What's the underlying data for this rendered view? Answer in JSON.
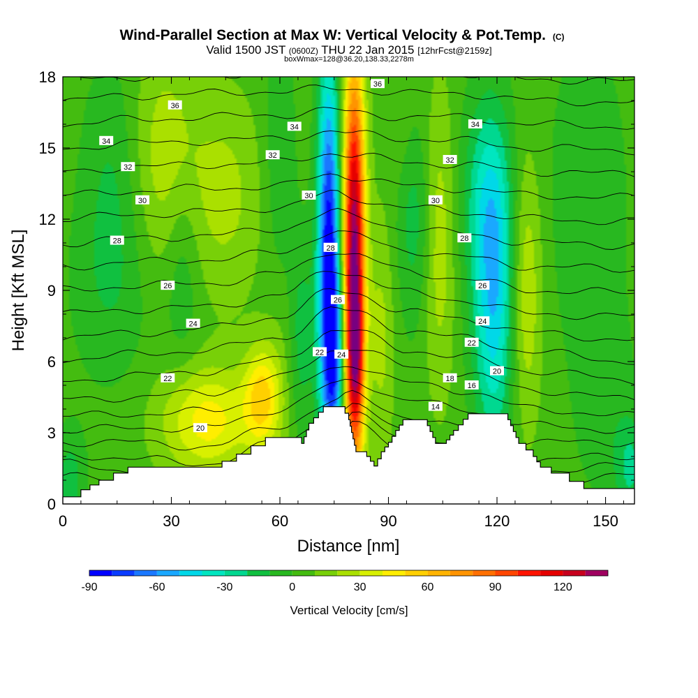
{
  "chart_data": {
    "type": "heatmap",
    "title": "Wind-Parallel Section at Max W: Vertical Velocity & Pot.Temp.",
    "title_mark": "(C)",
    "subtitle_parts": [
      "Valid 1500 JST",
      "(0600Z)",
      "THU 22 Jan 2015",
      "[12hrFcst@2159z]"
    ],
    "subtitle2": "boxWmax=128@36.20,138.33,2278m",
    "xlabel": "Distance [nm]",
    "ylabel": "Height [Kft MSL]",
    "xlim": [
      0,
      158
    ],
    "ylim": [
      0,
      18
    ],
    "x_ticks": [
      "0",
      "30",
      "60",
      "90",
      "120",
      "150"
    ],
    "y_ticks": [
      "0",
      "3",
      "6",
      "9",
      "12",
      "15",
      "18"
    ],
    "x_tick_values": [
      0,
      30,
      60,
      90,
      120,
      150
    ],
    "y_tick_values": [
      0,
      3,
      6,
      9,
      12,
      15,
      18
    ],
    "colorbar": {
      "label": "Vertical Velocity [cm/s]",
      "min": -90,
      "max": 140,
      "step": 10,
      "tick_labels": [
        "-90",
        "-60",
        "-30",
        "0",
        "30",
        "60",
        "90",
        "120"
      ],
      "tick_values": [
        -90,
        -60,
        -30,
        0,
        30,
        60,
        90,
        120
      ],
      "colors": [
        "#0000ff",
        "#0a3cff",
        "#1a78ff",
        "#1aa8ff",
        "#00d8e8",
        "#00e6c0",
        "#00d890",
        "#10c040",
        "#28b820",
        "#44bc10",
        "#78d008",
        "#aae000",
        "#d8f000",
        "#ffee00",
        "#ffd000",
        "#ffb400",
        "#ff9400",
        "#ff7000",
        "#ff4600",
        "#ff1400",
        "#e60000",
        "#c8001e",
        "#a00060",
        "#780080"
      ]
    },
    "terrain": [
      [
        0,
        0.3
      ],
      [
        5,
        0.6
      ],
      [
        10,
        1.0
      ],
      [
        14,
        1.3
      ],
      [
        18,
        1.55
      ],
      [
        40,
        1.55
      ],
      [
        44,
        1.8
      ],
      [
        48,
        2.1
      ],
      [
        52,
        2.45
      ],
      [
        56,
        2.8
      ],
      [
        64,
        2.8
      ],
      [
        66,
        2.55
      ],
      [
        68,
        3.4
      ],
      [
        72,
        4.1
      ],
      [
        77,
        4.1
      ],
      [
        79,
        3.55
      ],
      [
        81,
        2.2
      ],
      [
        84,
        2.0
      ],
      [
        86,
        1.6
      ],
      [
        88,
        2.2
      ],
      [
        90,
        2.6
      ],
      [
        92,
        3.1
      ],
      [
        94,
        3.55
      ],
      [
        100,
        3.55
      ],
      [
        103,
        2.55
      ],
      [
        106,
        2.7
      ],
      [
        108,
        3.1
      ],
      [
        112,
        3.8
      ],
      [
        120,
        3.8
      ],
      [
        123,
        3.55
      ],
      [
        126,
        2.55
      ],
      [
        130,
        2.0
      ],
      [
        132,
        1.55
      ],
      [
        135,
        1.3
      ],
      [
        140,
        0.95
      ],
      [
        144,
        0.65
      ],
      [
        158,
        0.65
      ]
    ],
    "theta_line_base": [
      [
        [
          0,
          1.2
        ],
        [
          20,
          0.8
        ],
        [
          40,
          0.5
        ],
        [
          60,
          1.2
        ],
        [
          75,
          2.6
        ],
        [
          80,
          3.6
        ],
        [
          95,
          2.2
        ],
        [
          110,
          1.0
        ],
        [
          130,
          1.0
        ],
        [
          158,
          1.2
        ]
      ],
      [
        [
          0,
          1.7
        ],
        [
          20,
          1.4
        ],
        [
          40,
          1.0
        ],
        [
          60,
          1.9
        ],
        [
          75,
          3.2
        ],
        [
          80,
          3.9
        ],
        [
          95,
          2.6
        ],
        [
          110,
          1.7
        ],
        [
          130,
          1.4
        ],
        [
          158,
          1.6
        ]
      ],
      [
        [
          0,
          2.1
        ],
        [
          20,
          1.9
        ],
        [
          40,
          1.7
        ],
        [
          60,
          2.6
        ],
        [
          75,
          3.7
        ],
        [
          80,
          4.1
        ],
        [
          95,
          3.1
        ],
        [
          110,
          2.4
        ],
        [
          130,
          1.9
        ],
        [
          158,
          2.0
        ]
      ],
      [
        [
          0,
          2.6
        ],
        [
          20,
          2.6
        ],
        [
          40,
          2.4
        ],
        [
          60,
          3.3
        ],
        [
          75,
          4.3
        ],
        [
          80,
          4.6
        ],
        [
          95,
          3.7
        ],
        [
          110,
          3.2
        ],
        [
          130,
          2.6
        ],
        [
          158,
          2.6
        ]
      ],
      [
        [
          0,
          3.1
        ],
        [
          20,
          3.2
        ],
        [
          40,
          3.2
        ],
        [
          60,
          4.0
        ],
        [
          75,
          5.0
        ],
        [
          80,
          5.2
        ],
        [
          95,
          4.4
        ],
        [
          110,
          4.0
        ],
        [
          130,
          3.3
        ],
        [
          158,
          3.1
        ]
      ],
      [
        [
          0,
          3.7
        ],
        [
          20,
          3.8
        ],
        [
          40,
          3.9
        ],
        [
          60,
          4.6
        ],
        [
          75,
          5.7
        ],
        [
          80,
          5.9
        ],
        [
          95,
          5.1
        ],
        [
          110,
          4.8
        ],
        [
          130,
          4.0
        ],
        [
          158,
          3.7
        ]
      ],
      [
        [
          0,
          4.4
        ],
        [
          20,
          4.5
        ],
        [
          40,
          4.7
        ],
        [
          60,
          5.3
        ],
        [
          75,
          6.5
        ],
        [
          80,
          6.6
        ],
        [
          95,
          5.8
        ],
        [
          110,
          5.5
        ],
        [
          130,
          4.8
        ],
        [
          158,
          4.4
        ]
      ],
      [
        [
          0,
          5.2
        ],
        [
          20,
          5.4
        ],
        [
          40,
          5.6
        ],
        [
          60,
          6.1
        ],
        [
          75,
          7.3
        ],
        [
          80,
          7.3
        ],
        [
          95,
          6.5
        ],
        [
          110,
          6.2
        ],
        [
          130,
          5.6
        ],
        [
          158,
          5.2
        ]
      ],
      [
        [
          0,
          6.1
        ],
        [
          20,
          6.3
        ],
        [
          40,
          6.5
        ],
        [
          60,
          7.0
        ],
        [
          75,
          8.2
        ],
        [
          80,
          8.1
        ],
        [
          95,
          7.3
        ],
        [
          110,
          7.0
        ],
        [
          130,
          6.4
        ],
        [
          158,
          6.0
        ]
      ],
      [
        [
          0,
          7.0
        ],
        [
          20,
          7.2
        ],
        [
          40,
          7.4
        ],
        [
          60,
          7.9
        ],
        [
          75,
          9.0
        ],
        [
          80,
          8.9
        ],
        [
          95,
          8.1
        ],
        [
          110,
          7.8
        ],
        [
          130,
          7.2
        ],
        [
          158,
          6.9
        ]
      ],
      [
        [
          0,
          8.0
        ],
        [
          20,
          8.2
        ],
        [
          40,
          8.3
        ],
        [
          60,
          8.8
        ],
        [
          75,
          9.9
        ],
        [
          80,
          9.7
        ],
        [
          95,
          8.9
        ],
        [
          110,
          8.6
        ],
        [
          130,
          8.0
        ],
        [
          158,
          7.9
        ]
      ],
      [
        [
          0,
          9.0
        ],
        [
          20,
          9.2
        ],
        [
          40,
          9.3
        ],
        [
          60,
          9.7
        ],
        [
          75,
          10.7
        ],
        [
          80,
          10.5
        ],
        [
          95,
          9.8
        ],
        [
          110,
          9.5
        ],
        [
          130,
          9.0
        ],
        [
          158,
          8.9
        ]
      ],
      [
        [
          0,
          10.0
        ],
        [
          20,
          10.2
        ],
        [
          40,
          10.3
        ],
        [
          60,
          10.6
        ],
        [
          75,
          11.5
        ],
        [
          80,
          11.3
        ],
        [
          95,
          10.7
        ],
        [
          110,
          10.4
        ],
        [
          130,
          10.0
        ],
        [
          158,
          9.9
        ]
      ],
      [
        [
          0,
          11.0
        ],
        [
          20,
          11.2
        ],
        [
          40,
          11.3
        ],
        [
          60,
          11.6
        ],
        [
          75,
          12.3
        ],
        [
          80,
          12.1
        ],
        [
          95,
          11.6
        ],
        [
          110,
          11.4
        ],
        [
          130,
          11.0
        ],
        [
          158,
          10.9
        ]
      ],
      [
        [
          0,
          12.0
        ],
        [
          20,
          12.2
        ],
        [
          40,
          12.3
        ],
        [
          60,
          12.5
        ],
        [
          75,
          13.1
        ],
        [
          80,
          12.9
        ],
        [
          95,
          12.5
        ],
        [
          110,
          12.3
        ],
        [
          130,
          12.0
        ],
        [
          158,
          11.9
        ]
      ],
      [
        [
          0,
          13.0
        ],
        [
          20,
          13.2
        ],
        [
          40,
          13.3
        ],
        [
          60,
          13.4
        ],
        [
          75,
          13.9
        ],
        [
          80,
          13.8
        ],
        [
          95,
          13.4
        ],
        [
          110,
          13.3
        ],
        [
          130,
          13.0
        ],
        [
          158,
          12.9
        ]
      ],
      [
        [
          0,
          14.0
        ],
        [
          20,
          14.2
        ],
        [
          40,
          14.3
        ],
        [
          60,
          14.4
        ],
        [
          75,
          14.8
        ],
        [
          80,
          14.7
        ],
        [
          95,
          14.4
        ],
        [
          110,
          14.3
        ],
        [
          130,
          14.0
        ],
        [
          158,
          13.9
        ]
      ],
      [
        [
          0,
          15.0
        ],
        [
          20,
          15.2
        ],
        [
          40,
          15.3
        ],
        [
          60,
          15.4
        ],
        [
          75,
          15.7
        ],
        [
          80,
          15.6
        ],
        [
          95,
          15.4
        ],
        [
          110,
          15.3
        ],
        [
          130,
          15.0
        ],
        [
          158,
          14.9
        ]
      ],
      [
        [
          0,
          16.0
        ],
        [
          20,
          16.2
        ],
        [
          40,
          16.3
        ],
        [
          60,
          16.4
        ],
        [
          75,
          16.6
        ],
        [
          80,
          16.5
        ],
        [
          95,
          16.3
        ],
        [
          110,
          16.3
        ],
        [
          130,
          16.0
        ],
        [
          158,
          15.9
        ]
      ],
      [
        [
          0,
          17.0
        ],
        [
          20,
          17.2
        ],
        [
          40,
          17.3
        ],
        [
          60,
          17.4
        ],
        [
          75,
          17.5
        ],
        [
          80,
          17.5
        ],
        [
          95,
          17.3
        ],
        [
          110,
          17.3
        ],
        [
          130,
          17.0
        ],
        [
          158,
          16.9
        ]
      ],
      [
        [
          0,
          17.9
        ],
        [
          20,
          18.0
        ],
        [
          40,
          18.1
        ],
        [
          60,
          18.2
        ],
        [
          75,
          18.3
        ],
        [
          80,
          18.3
        ],
        [
          95,
          18.1
        ],
        [
          110,
          18.1
        ],
        [
          130,
          17.9
        ],
        [
          158,
          17.8
        ]
      ]
    ],
    "theta_labels": [
      {
        "text": "36",
        "x": 31,
        "y": 16.8
      },
      {
        "text": "34",
        "x": 12,
        "y": 15.3
      },
      {
        "text": "32",
        "x": 18,
        "y": 14.2
      },
      {
        "text": "30",
        "x": 22,
        "y": 12.8
      },
      {
        "text": "28",
        "x": 15,
        "y": 11.1
      },
      {
        "text": "26",
        "x": 29,
        "y": 9.2
      },
      {
        "text": "24",
        "x": 36,
        "y": 7.6
      },
      {
        "text": "22",
        "x": 29,
        "y": 5.3
      },
      {
        "text": "20",
        "x": 38,
        "y": 3.2
      },
      {
        "text": "34",
        "x": 64,
        "y": 15.9
      },
      {
        "text": "32",
        "x": 58,
        "y": 14.7
      },
      {
        "text": "30",
        "x": 68,
        "y": 13.0
      },
      {
        "text": "28",
        "x": 74,
        "y": 10.8
      },
      {
        "text": "26",
        "x": 76,
        "y": 8.6
      },
      {
        "text": "24",
        "x": 77,
        "y": 6.3
      },
      {
        "text": "22",
        "x": 71,
        "y": 6.4
      },
      {
        "text": "36",
        "x": 87,
        "y": 17.7
      },
      {
        "text": "34",
        "x": 114,
        "y": 16.0
      },
      {
        "text": "32",
        "x": 107,
        "y": 14.5
      },
      {
        "text": "30",
        "x": 103,
        "y": 12.8
      },
      {
        "text": "28",
        "x": 111,
        "y": 11.2
      },
      {
        "text": "26",
        "x": 116,
        "y": 9.2
      },
      {
        "text": "24",
        "x": 116,
        "y": 7.7
      },
      {
        "text": "22",
        "x": 113,
        "y": 6.8
      },
      {
        "text": "20",
        "x": 120,
        "y": 5.6
      },
      {
        "text": "18",
        "x": 107,
        "y": 5.3
      },
      {
        "text": "16",
        "x": 113,
        "y": 5.0
      },
      {
        "text": "14",
        "x": 103,
        "y": 4.1
      }
    ],
    "w_features": [
      {
        "x": 73.5,
        "y": 10,
        "sx": 2.2,
        "sy": 6.0,
        "a": -95
      },
      {
        "x": 75.5,
        "y": 6,
        "sx": 1.8,
        "sy": 2.5,
        "a": -40
      },
      {
        "x": 80.5,
        "y": 10,
        "sx": 2.1,
        "sy": 6.0,
        "a": 140
      },
      {
        "x": 81.0,
        "y": 6,
        "sx": 1.5,
        "sy": 2.0,
        "a": 40
      },
      {
        "x": 119,
        "y": 8.5,
        "sx": 4.0,
        "sy": 4.5,
        "a": -50
      },
      {
        "x": 117,
        "y": 13,
        "sx": 5.0,
        "sy": 3.0,
        "a": -25
      },
      {
        "x": 97,
        "y": 14,
        "sx": 3.5,
        "sy": 4.0,
        "a": -28
      },
      {
        "x": 60,
        "y": 12,
        "sx": 3.0,
        "sy": 5.0,
        "a": -22
      },
      {
        "x": 66,
        "y": 7,
        "sx": 2.5,
        "sy": 3.0,
        "a": -20
      },
      {
        "x": 40,
        "y": 3.5,
        "sx": 9.0,
        "sy": 1.6,
        "a": 40
      },
      {
        "x": 55,
        "y": 4.5,
        "sx": 3.5,
        "sy": 1.5,
        "a": 45
      },
      {
        "x": 60,
        "y": 8,
        "sx": 3.0,
        "sy": 4.0,
        "a": 18
      },
      {
        "x": 28,
        "y": 14.5,
        "sx": 7.0,
        "sy": 3.5,
        "a": 22
      },
      {
        "x": 45,
        "y": 13,
        "sx": 7.0,
        "sy": 3.0,
        "a": 18
      },
      {
        "x": 96,
        "y": 16,
        "sx": 4.0,
        "sy": 2.5,
        "a": 20
      },
      {
        "x": 104,
        "y": 11,
        "sx": 3.0,
        "sy": 4.5,
        "a": 22
      },
      {
        "x": 128,
        "y": 9,
        "sx": 3.0,
        "sy": 4.0,
        "a": 26
      },
      {
        "x": 88,
        "y": 7,
        "sx": 2.5,
        "sy": 3.5,
        "a": 18
      },
      {
        "x": 14,
        "y": 14,
        "sx": 6.0,
        "sy": 3.5,
        "a": -15
      },
      {
        "x": 13,
        "y": 9,
        "sx": 8.0,
        "sy": 3.0,
        "a": -12
      },
      {
        "x": 33,
        "y": 10,
        "sx": 3.5,
        "sy": 3.0,
        "a": -16
      },
      {
        "x": 145,
        "y": 13,
        "sx": 8.0,
        "sy": 5.0,
        "a": -12
      },
      {
        "x": 150,
        "y": 4,
        "sx": 6.0,
        "sy": 3.0,
        "a": -10
      },
      {
        "x": 2,
        "y": 1,
        "sx": 3.0,
        "sy": 1.5,
        "a": -20
      },
      {
        "x": 157,
        "y": 1.5,
        "sx": 3.0,
        "sy": 1.5,
        "a": -25
      }
    ],
    "w_background": 5,
    "grid": false
  }
}
